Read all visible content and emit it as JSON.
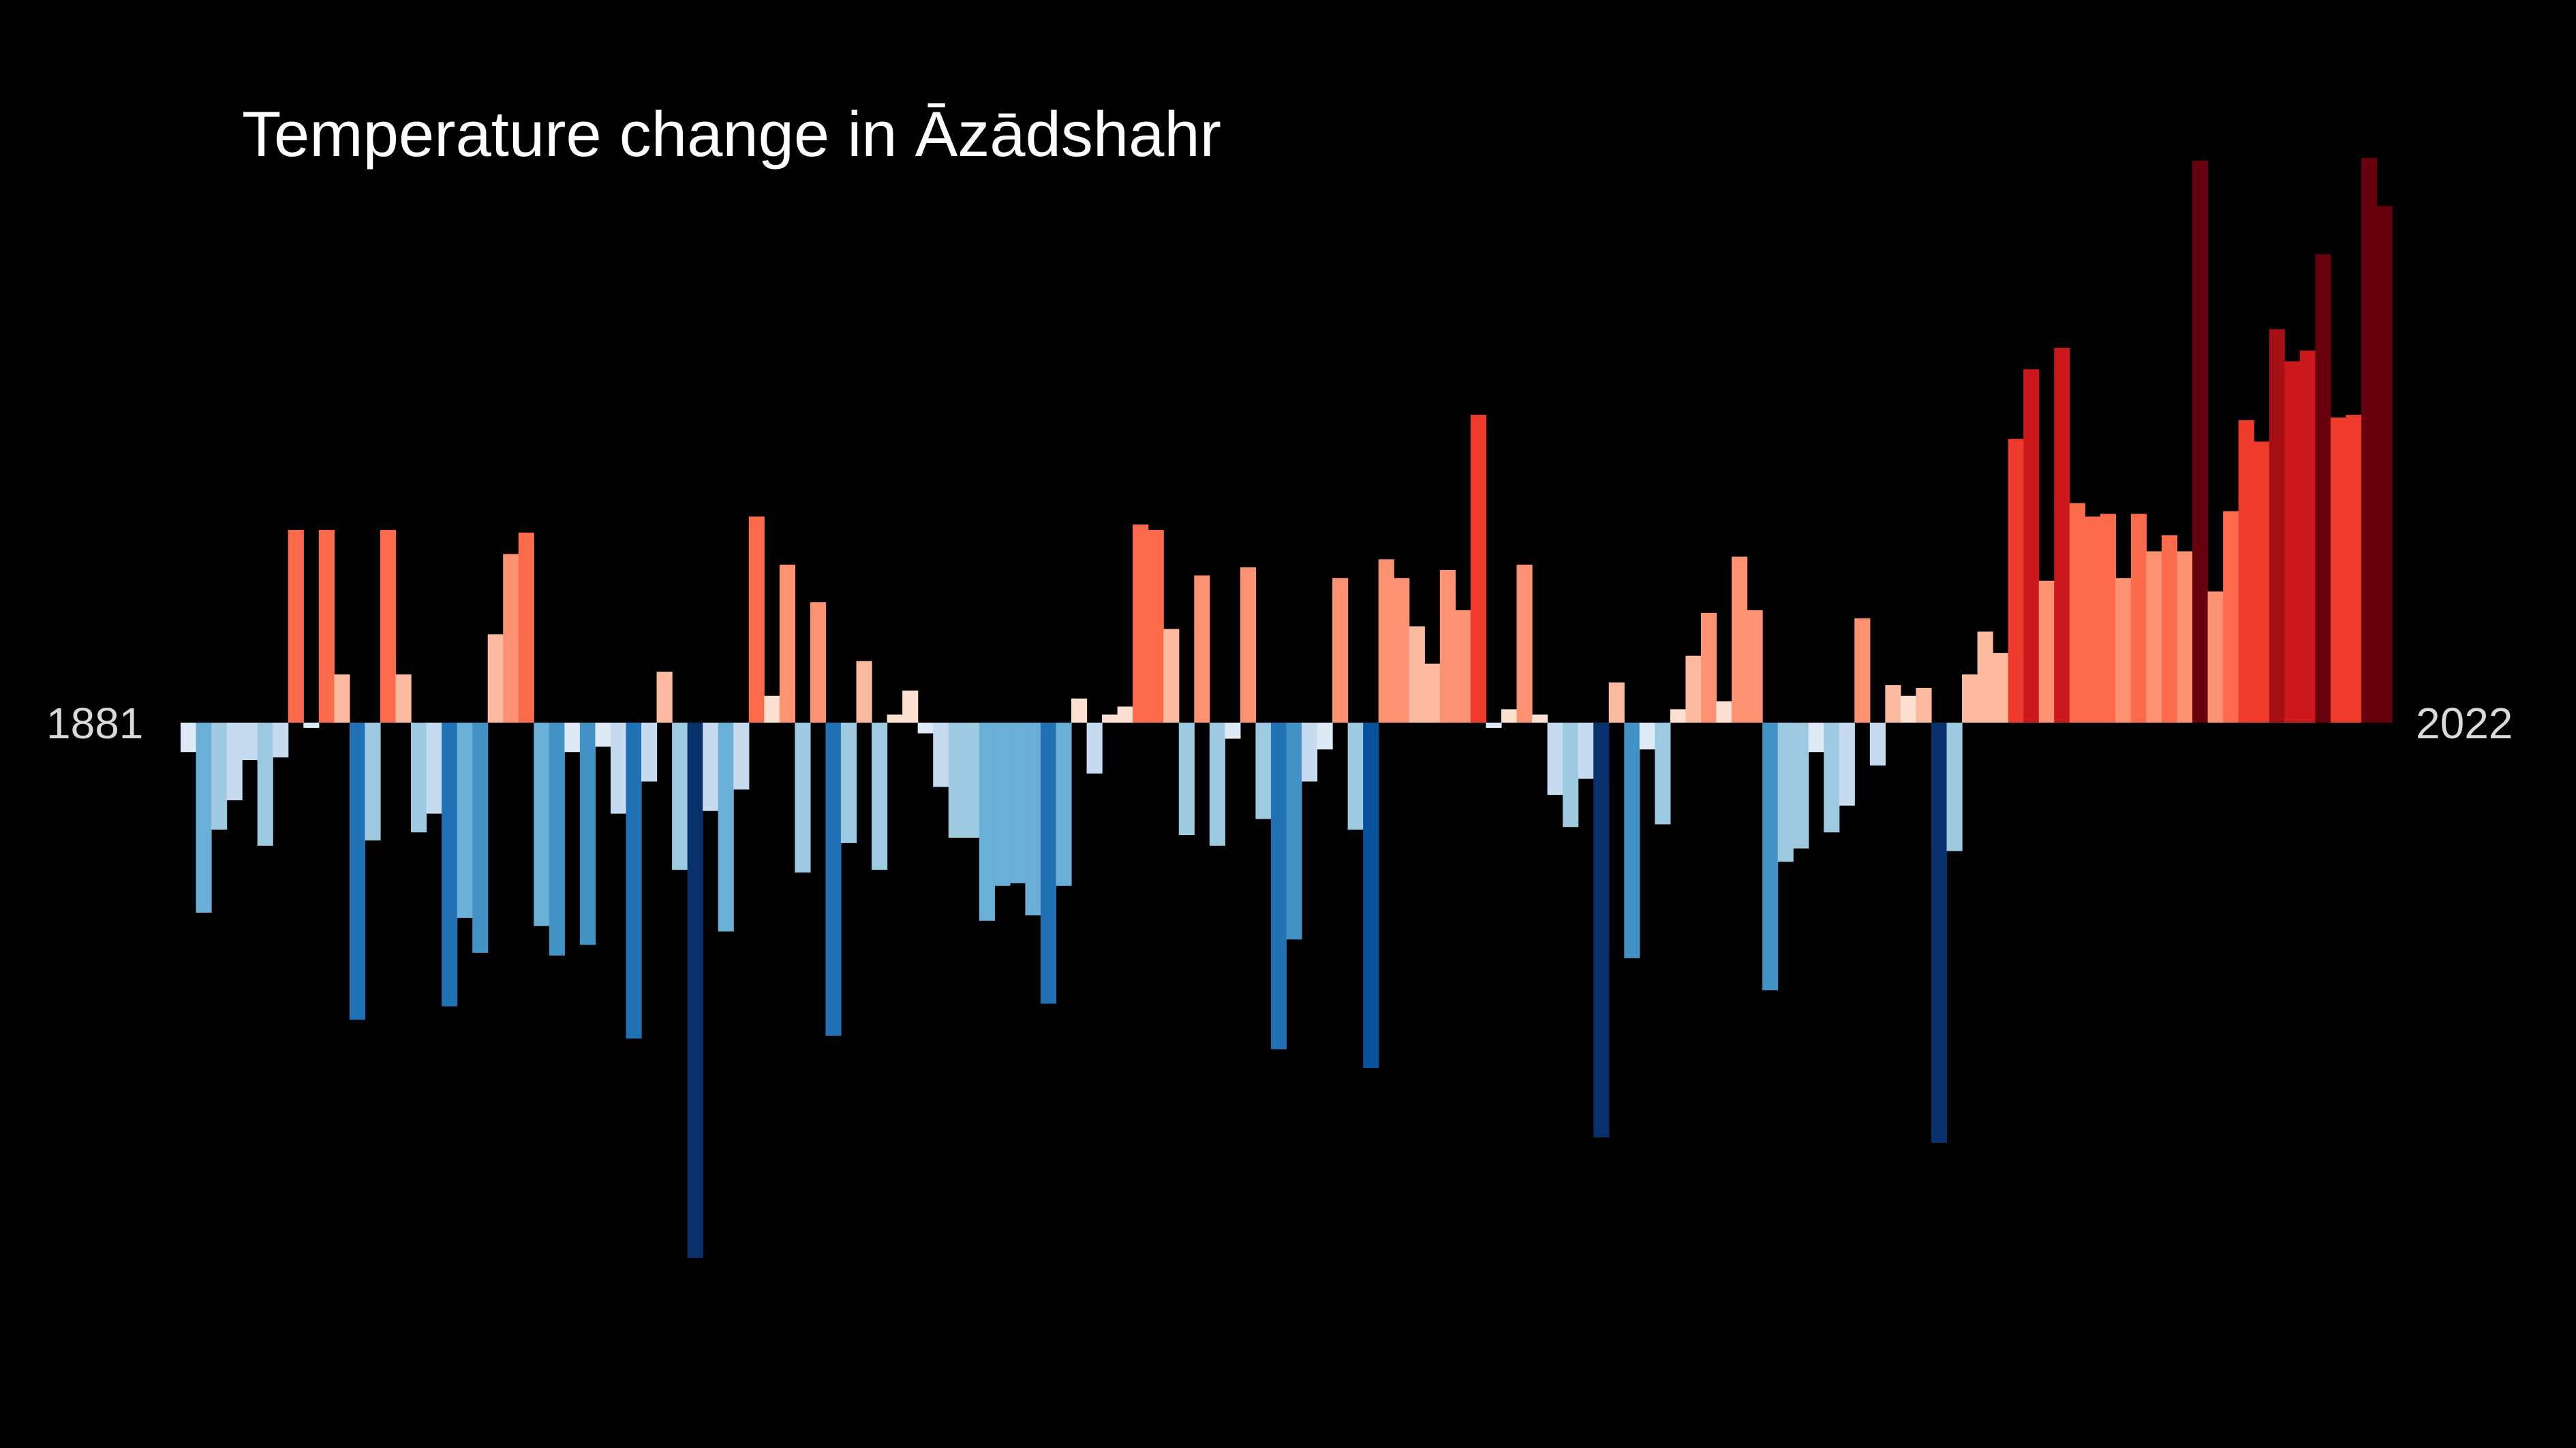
{
  "chart_data": {
    "type": "bar",
    "title": "Temperature change in Āzādshahr",
    "start_label": "1881",
    "end_label": "2022",
    "x_start": 1881,
    "x_end": 2022,
    "ylim": [
      -1.0,
      1.05
    ],
    "values": [
      -0.055,
      -0.355,
      -0.2,
      -0.145,
      -0.07,
      -0.23,
      -0.065,
      0.36,
      -0.01,
      0.36,
      0.09,
      -0.555,
      -0.22,
      0.36,
      0.09,
      -0.205,
      -0.17,
      -0.53,
      -0.365,
      -0.43,
      0.165,
      0.315,
      0.355,
      -0.38,
      -0.435,
      -0.055,
      -0.415,
      -0.045,
      -0.17,
      -0.59,
      -0.11,
      0.095,
      -0.275,
      -1.0,
      -0.165,
      -0.39,
      -0.125,
      0.385,
      0.05,
      0.295,
      -0.28,
      0.225,
      -0.585,
      -0.225,
      0.115,
      -0.275,
      0.015,
      0.06,
      -0.02,
      -0.12,
      -0.215,
      -0.215,
      -0.37,
      -0.305,
      -0.3,
      -0.36,
      -0.525,
      -0.305,
      0.045,
      -0.095,
      0.015,
      0.03,
      0.37,
      0.36,
      0.175,
      -0.21,
      0.275,
      -0.23,
      -0.03,
      0.29,
      -0.18,
      -0.61,
      -0.405,
      -0.11,
      -0.05,
      0.27,
      -0.2,
      -0.645,
      0.305,
      0.27,
      0.18,
      0.11,
      0.285,
      0.21,
      0.575,
      -0.01,
      0.025,
      0.295,
      0.015,
      -0.135,
      -0.195,
      -0.105,
      -0.775,
      0.075,
      -0.44,
      -0.05,
      -0.19,
      0.025,
      0.125,
      0.205,
      0.04,
      0.31,
      0.21,
      -0.5,
      -0.26,
      -0.235,
      -0.055,
      -0.205,
      -0.155,
      0.195,
      -0.08,
      0.07,
      0.05,
      0.065,
      -0.785,
      -0.24,
      0.09,
      0.17,
      0.13,
      0.53,
      0.66,
      0.265,
      0.7,
      0.41,
      0.385,
      0.39,
      0.27,
      0.39,
      0.32,
      0.35,
      0.32,
      1.05,
      0.245,
      0.395,
      0.565,
      0.525,
      0.735,
      0.675,
      0.695,
      0.875,
      0.57,
      0.575,
      1.055,
      0.965
    ]
  }
}
